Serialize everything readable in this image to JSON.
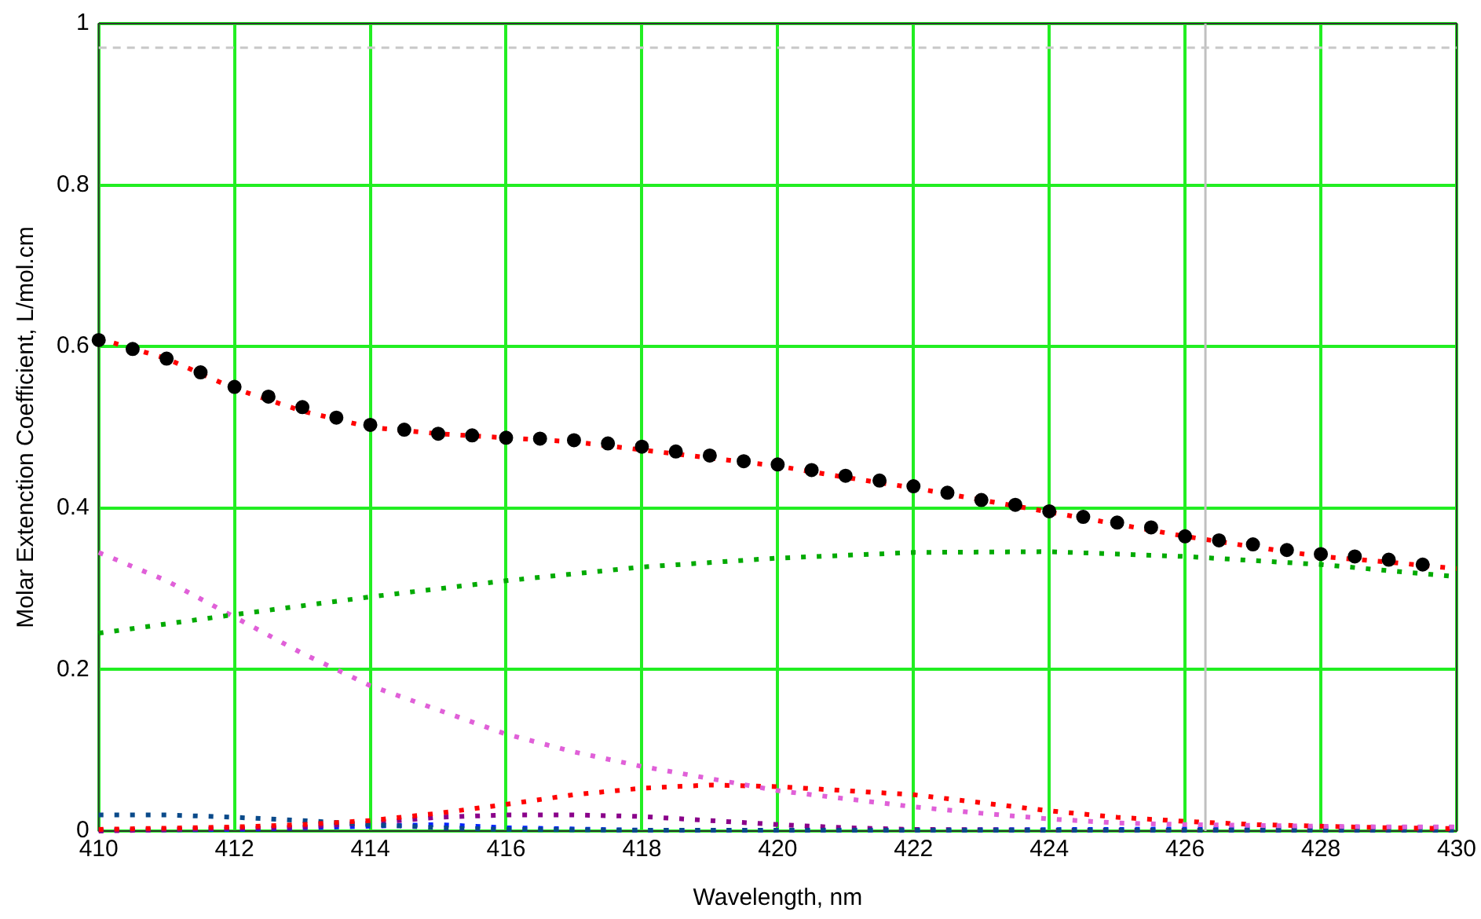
{
  "chart_data": {
    "type": "line",
    "xlabel": "Wavelength, nm",
    "ylabel": "Molar Extenction Coefficient, L/mol.cm",
    "xlim": [
      410,
      430
    ],
    "xticks": [
      410,
      412,
      414,
      416,
      418,
      420,
      422,
      424,
      426,
      428,
      430
    ],
    "ylim": [
      0,
      1
    ],
    "yticks": [
      0,
      0.2,
      0.4,
      0.6,
      0.8,
      1
    ],
    "grid": true,
    "legend": false,
    "line_style": "dotted",
    "marker": "none",
    "series": [
      {
        "type": "line",
        "color": "#00aa00",
        "x": [
          410,
          412,
          414,
          416,
          418,
          420,
          422,
          424,
          426,
          428,
          430
        ],
        "values": [
          0.245,
          0.268,
          0.29,
          0.31,
          0.327,
          0.338,
          0.345,
          0.346,
          0.34,
          0.33,
          0.315
        ]
      },
      {
        "type": "line",
        "color": "#e060d8",
        "x": [
          410,
          411,
          412,
          413,
          414,
          415,
          416,
          417,
          418,
          419,
          420,
          421,
          422,
          423,
          424,
          425,
          426,
          427,
          428,
          429,
          430
        ],
        "values": [
          0.345,
          0.31,
          0.265,
          0.22,
          0.18,
          0.15,
          0.12,
          0.098,
          0.08,
          0.065,
          0.05,
          0.04,
          0.03,
          0.022,
          0.015,
          0.01,
          0.008,
          0.007,
          0.006,
          0.005,
          0.005
        ]
      },
      {
        "type": "line",
        "color": "#ff0000",
        "x": [
          410,
          412,
          413,
          414,
          415,
          416,
          417,
          418,
          419,
          420,
          421,
          422,
          423,
          424,
          425,
          426,
          427,
          428,
          429,
          430
        ],
        "values": [
          0.002,
          0.005,
          0.008,
          0.013,
          0.022,
          0.033,
          0.045,
          0.053,
          0.057,
          0.055,
          0.05,
          0.045,
          0.035,
          0.025,
          0.017,
          0.012,
          0.008,
          0.006,
          0.004,
          0.003
        ]
      },
      {
        "type": "line",
        "color": "#0a4a8a",
        "x": [
          410,
          411,
          412,
          413,
          414,
          415,
          416,
          418,
          420,
          425,
          430
        ],
        "values": [
          0.02,
          0.02,
          0.017,
          0.013,
          0.008,
          0.004,
          0.002,
          0.001,
          0.001,
          0.001,
          0.001
        ]
      },
      {
        "type": "line",
        "color": "#8a008a",
        "x": [
          410,
          413,
          414,
          415,
          416,
          417,
          418,
          419,
          420,
          421,
          422,
          424,
          430
        ],
        "values": [
          0,
          0.005,
          0.01,
          0.017,
          0.02,
          0.02,
          0.018,
          0.013,
          0.008,
          0.004,
          0.002,
          0.001,
          0.001
        ]
      },
      {
        "type": "line",
        "color": "#0022ff",
        "x": [
          410,
          412,
          414,
          415,
          416,
          418,
          420,
          425,
          430
        ],
        "values": [
          0.001,
          0.002,
          0.006,
          0.008,
          0.004,
          0.001,
          0.001,
          0.002,
          0.005
        ]
      },
      {
        "type": "line",
        "color": "#ff0000",
        "x": [
          410,
          411,
          412,
          413,
          414,
          415,
          416,
          417,
          418,
          419,
          420,
          421,
          422,
          423,
          424,
          425,
          426,
          427,
          428,
          429,
          430
        ],
        "values": [
          0.61,
          0.585,
          0.548,
          0.52,
          0.5,
          0.492,
          0.487,
          0.482,
          0.472,
          0.462,
          0.452,
          0.438,
          0.425,
          0.41,
          0.395,
          0.38,
          0.365,
          0.352,
          0.34,
          0.333,
          0.325
        ]
      },
      {
        "type": "scatter",
        "marker": "circle",
        "color": "#000000",
        "x": [
          410,
          410.5,
          411,
          411.5,
          412,
          412.5,
          413,
          413.5,
          414,
          414.5,
          415,
          415.5,
          416,
          416.5,
          417,
          417.5,
          418,
          418.5,
          419,
          419.5,
          420,
          420.5,
          421,
          421.5,
          422,
          422.5,
          423,
          423.5,
          424,
          424.5,
          425,
          425.5,
          426,
          426.5,
          427,
          427.5,
          428,
          428.5,
          429,
          429.5
        ],
        "values": [
          0.608,
          0.597,
          0.585,
          0.568,
          0.55,
          0.538,
          0.525,
          0.512,
          0.503,
          0.497,
          0.492,
          0.49,
          0.487,
          0.486,
          0.484,
          0.48,
          0.476,
          0.47,
          0.465,
          0.458,
          0.454,
          0.447,
          0.44,
          0.434,
          0.427,
          0.419,
          0.41,
          0.404,
          0.396,
          0.389,
          0.382,
          0.376,
          0.365,
          0.36,
          0.355,
          0.348,
          0.343,
          0.34,
          0.336,
          0.33
        ]
      }
    ],
    "ref_lines": [
      {
        "axis": "x",
        "value": 426.3,
        "color": "#c0c0c0",
        "line_style": "solid"
      },
      {
        "axis": "y",
        "value": 0.97,
        "color": "#c8c8c8",
        "line_style": "dashed"
      }
    ]
  }
}
